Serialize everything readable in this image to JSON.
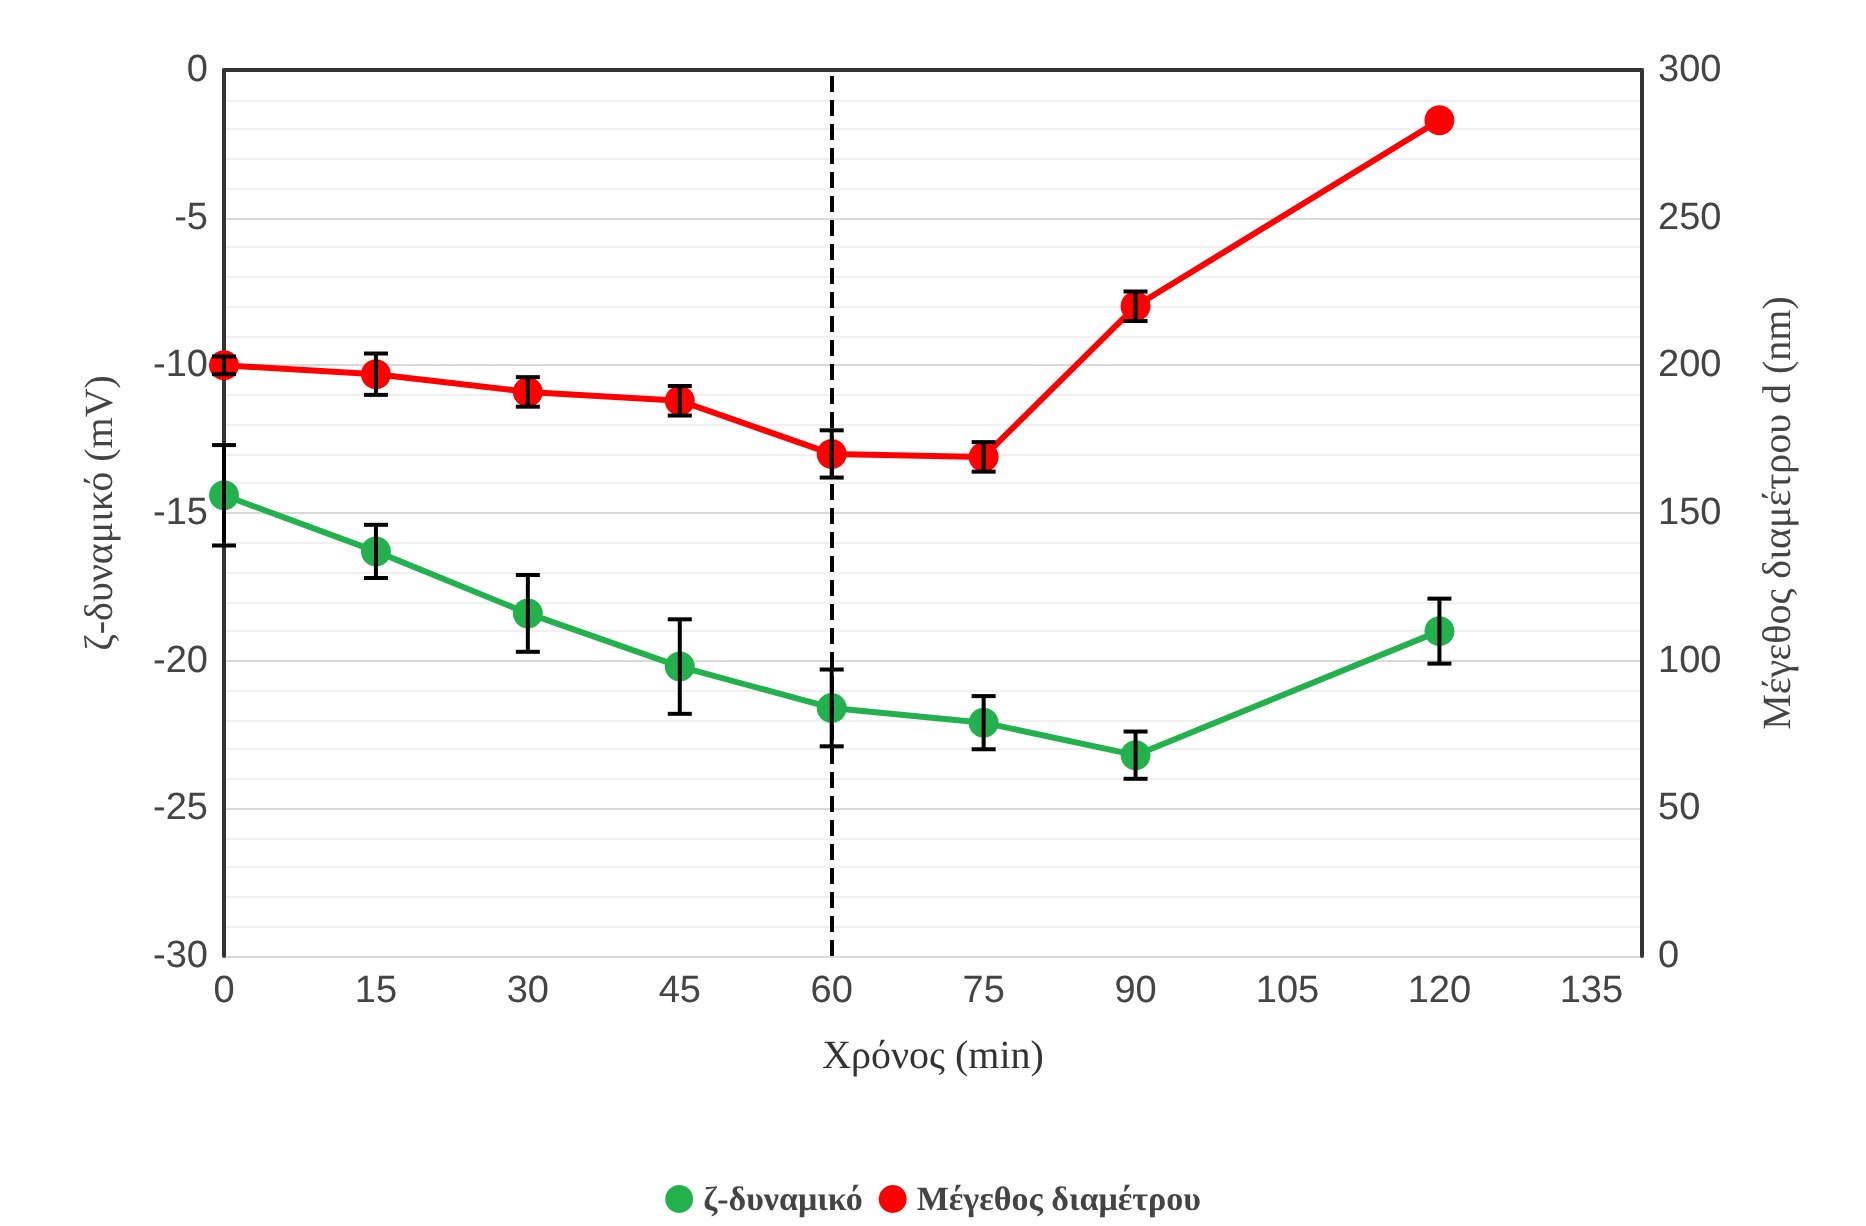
{
  "chart_data": {
    "type": "line",
    "xlabel": "Χρόνος (min)",
    "ylabel": "ζ-δυναμικό (mV)",
    "y2label": "Μέγεθος διαμέτρου d (nm)",
    "xlim": [
      0,
      140
    ],
    "xticks": [
      0,
      15,
      30,
      45,
      60,
      75,
      90,
      105,
      120,
      135
    ],
    "ylim": [
      -30,
      0
    ],
    "yticks": [
      -30,
      -25,
      -20,
      -15,
      -10,
      -5,
      0
    ],
    "y2lim": [
      0,
      300
    ],
    "y2ticks": [
      0,
      50,
      100,
      150,
      200,
      250,
      300
    ],
    "x": [
      0,
      15,
      30,
      45,
      60,
      75,
      90,
      120
    ],
    "series": [
      {
        "name": "ζ-δυναμικό",
        "color": "#22b14c",
        "values": [
          -14.4,
          -16.3,
          -18.4,
          -20.2,
          -21.6,
          -22.1,
          -23.2,
          -19.0
        ],
        "errors": [
          1.7,
          0.9,
          1.3,
          1.6,
          1.3,
          0.9,
          0.8,
          1.1
        ]
      },
      {
        "name": "Μέγεθος διαμέτρου",
        "color": "#ff0000",
        "axis": "y2",
        "values": [
          200,
          197,
          191,
          188,
          170,
          169,
          220,
          283
        ],
        "errors": [
          3,
          7,
          5,
          5,
          8,
          5,
          5,
          null
        ]
      }
    ],
    "ref_lines": [
      {
        "axis": "x",
        "value": 60,
        "line_style": "dashed",
        "color": "#000000"
      }
    ],
    "grid": "y",
    "legend": "bottom",
    "marker": "circle",
    "line_style": "solid"
  }
}
